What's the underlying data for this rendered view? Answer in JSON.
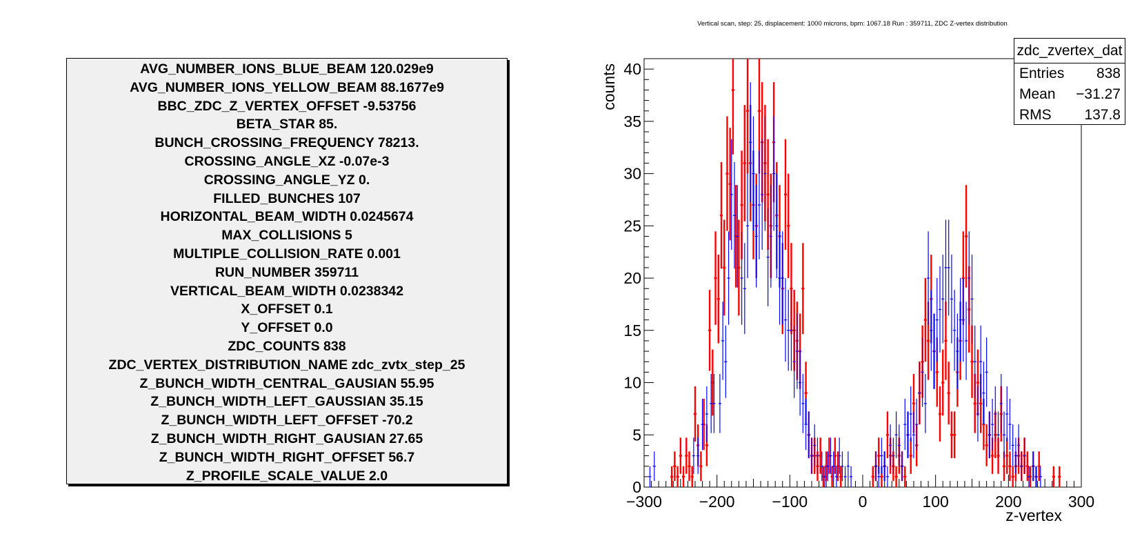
{
  "parameters": [
    "AVG_NUMBER_IONS_BLUE_BEAM 120.029e9",
    "AVG_NUMBER_IONS_YELLOW_BEAM 88.1677e9",
    "BBC_ZDC_Z_VERTEX_OFFSET -9.53756",
    "BETA_STAR 85.",
    "BUNCH_CROSSING_FREQUENCY 78213.",
    "CROSSING_ANGLE_XZ -0.07e-3",
    "CROSSING_ANGLE_YZ 0.",
    "FILLED_BUNCHES 107",
    "HORIZONTAL_BEAM_WIDTH 0.0245674",
    "MAX_COLLISIONS 5",
    "MULTIPLE_COLLISION_RATE 0.001",
    "RUN_NUMBER 359711",
    "VERTICAL_BEAM_WIDTH 0.0238342",
    "X_OFFSET 0.1",
    "Y_OFFSET 0.0",
    "ZDC_COUNTS 838",
    "ZDC_VERTEX_DISTRIBUTION_NAME zdc_zvtx_step_25",
    "Z_BUNCH_WIDTH_CENTRAL_GAUSIAN 55.95",
    "Z_BUNCH_WIDTH_LEFT_GAUSSIAN 35.15",
    "Z_BUNCH_WIDTH_LEFT_OFFSET -70.2",
    "Z_BUNCH_WIDTH_RIGHT_GAUSIAN 27.65",
    "Z_BUNCH_WIDTH_RIGHT_OFFSET 56.7",
    "Z_PROFILE_SCALE_VALUE 2.0"
  ],
  "stats": {
    "name": "zdc_zvertex_dat",
    "rows": [
      {
        "label": "Entries",
        "value": "838"
      },
      {
        "label": "Mean",
        "value": "−31.27"
      },
      {
        "label": "RMS",
        "value": "137.8"
      }
    ]
  },
  "chart_data": {
    "type": "scatter",
    "title": "Vertical scan, step: 25, displacement: 1000 microns, bpm: 1067.18 Run : 359711, ZDC Z-vertex distribution",
    "xlabel": "z-vertex",
    "ylabel": "counts",
    "xlim": [
      -300,
      300
    ],
    "ylim": [
      0,
      41
    ],
    "xticks": [
      -300,
      -200,
      -100,
      0,
      100,
      200,
      300
    ],
    "xtick_labels": [
      "−300",
      "−200",
      "−100",
      "0",
      "100",
      "200",
      "300"
    ],
    "yticks": [
      0,
      5,
      10,
      15,
      20,
      25,
      30,
      35,
      40
    ],
    "ytick_labels": [
      "0",
      "5",
      "10",
      "15",
      "20",
      "25",
      "30",
      "35",
      "40"
    ],
    "grid": false,
    "bin_width": 4,
    "series": [
      {
        "color": "#ff0000",
        "points": [
          [
            -262,
            1
          ],
          [
            -258,
            2
          ],
          [
            -254,
            1
          ],
          [
            -250,
            3
          ],
          [
            -246,
            1
          ],
          [
            -242,
            3
          ],
          [
            -238,
            2
          ],
          [
            -234,
            1
          ],
          [
            -230,
            7
          ],
          [
            -226,
            4
          ],
          [
            -222,
            2
          ],
          [
            -218,
            6
          ],
          [
            -214,
            4
          ],
          [
            -210,
            15
          ],
          [
            -206,
            10
          ],
          [
            -202,
            20
          ],
          [
            -198,
            18
          ],
          [
            -194,
            26
          ],
          [
            -190,
            21
          ],
          [
            -186,
            30
          ],
          [
            -182,
            29
          ],
          [
            -178,
            38
          ],
          [
            -174,
            24
          ],
          [
            -170,
            21
          ],
          [
            -166,
            27
          ],
          [
            -162,
            31
          ],
          [
            -158,
            36
          ],
          [
            -154,
            31
          ],
          [
            -150,
            27
          ],
          [
            -146,
            25
          ],
          [
            -142,
            36
          ],
          [
            -138,
            33
          ],
          [
            -134,
            31
          ],
          [
            -130,
            28
          ],
          [
            -126,
            25
          ],
          [
            -122,
            33
          ],
          [
            -118,
            26
          ],
          [
            -114,
            24
          ],
          [
            -110,
            19
          ],
          [
            -106,
            28
          ],
          [
            -102,
            25
          ],
          [
            -98,
            19
          ],
          [
            -94,
            15
          ],
          [
            -90,
            14
          ],
          [
            -86,
            13
          ],
          [
            -82,
            19
          ],
          [
            -78,
            9
          ],
          [
            -74,
            5
          ],
          [
            -70,
            3
          ],
          [
            -66,
            3
          ],
          [
            -62,
            2
          ],
          [
            -58,
            3
          ],
          [
            -54,
            1
          ],
          [
            -50,
            2
          ],
          [
            -46,
            3
          ],
          [
            -42,
            1
          ],
          [
            -38,
            3
          ],
          [
            -34,
            2
          ],
          [
            -30,
            1
          ],
          [
            14,
            1
          ],
          [
            18,
            2
          ],
          [
            22,
            3
          ],
          [
            26,
            1
          ],
          [
            30,
            2
          ],
          [
            34,
            5
          ],
          [
            38,
            3
          ],
          [
            42,
            2
          ],
          [
            46,
            1
          ],
          [
            50,
            3
          ],
          [
            54,
            2
          ],
          [
            58,
            1
          ],
          [
            62,
            5
          ],
          [
            66,
            3
          ],
          [
            70,
            8
          ],
          [
            74,
            4
          ],
          [
            78,
            9
          ],
          [
            82,
            12
          ],
          [
            86,
            16
          ],
          [
            90,
            14
          ],
          [
            94,
            18
          ],
          [
            98,
            13
          ],
          [
            102,
            11
          ],
          [
            106,
            7
          ],
          [
            110,
            10
          ],
          [
            114,
            14
          ],
          [
            118,
            9
          ],
          [
            122,
            5
          ],
          [
            126,
            5
          ],
          [
            130,
            11
          ],
          [
            134,
            14
          ],
          [
            138,
            20
          ],
          [
            142,
            24
          ],
          [
            146,
            17
          ],
          [
            150,
            12
          ],
          [
            154,
            8
          ],
          [
            158,
            10
          ],
          [
            162,
            8
          ],
          [
            166,
            6
          ],
          [
            170,
            4
          ],
          [
            174,
            5
          ],
          [
            178,
            3
          ],
          [
            182,
            5
          ],
          [
            186,
            3
          ],
          [
            190,
            7
          ],
          [
            194,
            2
          ],
          [
            198,
            3
          ],
          [
            202,
            2
          ],
          [
            206,
            1
          ],
          [
            210,
            2
          ],
          [
            214,
            3
          ],
          [
            218,
            2
          ],
          [
            222,
            3
          ],
          [
            226,
            2
          ],
          [
            230,
            1
          ],
          [
            234,
            2
          ],
          [
            238,
            1
          ],
          [
            242,
            2
          ],
          [
            262,
            1
          ],
          [
            270,
            1
          ]
        ]
      },
      {
        "color": "#0000ff",
        "points": [
          [
            -292,
            1
          ],
          [
            -286,
            2
          ],
          [
            -232,
            3
          ],
          [
            -226,
            3
          ],
          [
            -220,
            6
          ],
          [
            -214,
            7
          ],
          [
            -208,
            8
          ],
          [
            -204,
            8
          ],
          [
            -196,
            8
          ],
          [
            -192,
            14
          ],
          [
            -188,
            12
          ],
          [
            -184,
            20
          ],
          [
            -180,
            28
          ],
          [
            -176,
            26
          ],
          [
            -172,
            24
          ],
          [
            -166,
            20
          ],
          [
            -162,
            19
          ],
          [
            -158,
            25
          ],
          [
            -154,
            33
          ],
          [
            -150,
            30
          ],
          [
            -146,
            24
          ],
          [
            -142,
            27
          ],
          [
            -138,
            28
          ],
          [
            -134,
            30
          ],
          [
            -130,
            22
          ],
          [
            -126,
            24
          ],
          [
            -122,
            30
          ],
          [
            -118,
            25
          ],
          [
            -114,
            20
          ],
          [
            -110,
            20
          ],
          [
            -106,
            16
          ],
          [
            -102,
            15
          ],
          [
            -98,
            15
          ],
          [
            -94,
            12
          ],
          [
            -90,
            13
          ],
          [
            -86,
            10
          ],
          [
            -82,
            8
          ],
          [
            -78,
            6
          ],
          [
            -74,
            5
          ],
          [
            -70,
            3
          ],
          [
            -66,
            4
          ],
          [
            -62,
            3
          ],
          [
            -56,
            2
          ],
          [
            -52,
            1
          ],
          [
            -48,
            2
          ],
          [
            -44,
            3
          ],
          [
            -40,
            2
          ],
          [
            -36,
            1
          ],
          [
            -32,
            3
          ],
          [
            -28,
            2
          ],
          [
            -24,
            1
          ],
          [
            -20,
            2
          ],
          [
            -16,
            1
          ],
          [
            18,
            2
          ],
          [
            22,
            1
          ],
          [
            26,
            3
          ],
          [
            30,
            2
          ],
          [
            34,
            1
          ],
          [
            38,
            4
          ],
          [
            42,
            3
          ],
          [
            46,
            5
          ],
          [
            50,
            4
          ],
          [
            54,
            2
          ],
          [
            58,
            6
          ],
          [
            62,
            5
          ],
          [
            66,
            7
          ],
          [
            70,
            5
          ],
          [
            74,
            6
          ],
          [
            78,
            9
          ],
          [
            82,
            11
          ],
          [
            86,
            8
          ],
          [
            90,
            20
          ],
          [
            94,
            15
          ],
          [
            98,
            13
          ],
          [
            102,
            16
          ],
          [
            106,
            17
          ],
          [
            110,
            18
          ],
          [
            114,
            21
          ],
          [
            118,
            21
          ],
          [
            122,
            18
          ],
          [
            126,
            15
          ],
          [
            130,
            13
          ],
          [
            134,
            16
          ],
          [
            138,
            16
          ],
          [
            142,
            14
          ],
          [
            146,
            20
          ],
          [
            150,
            18
          ],
          [
            154,
            12
          ],
          [
            158,
            7
          ],
          [
            162,
            12
          ],
          [
            166,
            9
          ],
          [
            170,
            11
          ],
          [
            174,
            5
          ],
          [
            178,
            6
          ],
          [
            182,
            7
          ],
          [
            186,
            5
          ],
          [
            190,
            8
          ],
          [
            194,
            5
          ],
          [
            198,
            7
          ],
          [
            202,
            6
          ],
          [
            206,
            4
          ],
          [
            210,
            3
          ],
          [
            214,
            4
          ],
          [
            218,
            2
          ],
          [
            222,
            3
          ],
          [
            228,
            1
          ],
          [
            234,
            2
          ],
          [
            238,
            1
          ],
          [
            244,
            1
          ]
        ]
      }
    ]
  }
}
